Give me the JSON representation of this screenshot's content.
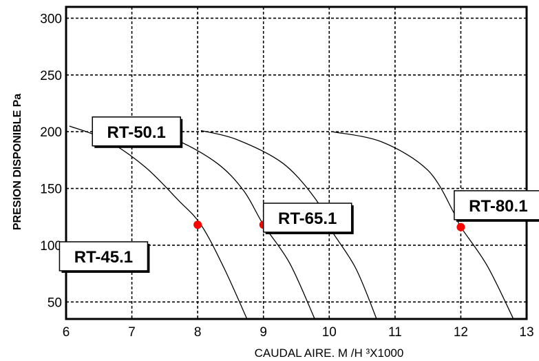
{
  "chart_data": {
    "type": "line",
    "title": "",
    "xlabel": "CAUDAL AIRE. M  /H ³X1000",
    "ylabel": "PRESION DISPONIBLE Pa",
    "xlim": [
      6,
      13
    ],
    "ylim": [
      35,
      310
    ],
    "x_ticks": [
      6,
      7,
      8,
      9,
      10,
      11,
      12,
      13
    ],
    "y_ticks": [
      50,
      100,
      150,
      200,
      250,
      300
    ],
    "grid": true,
    "series": [
      {
        "name": "RT-45.1",
        "x": [
          6.05,
          6.6,
          7.2,
          7.7,
          8.05,
          8.4,
          8.75
        ],
        "y": [
          205,
          193,
          169,
          140,
          118,
          80,
          35
        ],
        "marker": {
          "x": 8.0,
          "y": 118
        }
      },
      {
        "name": "RT-50.1",
        "x": [
          7.1,
          7.7,
          8.3,
          8.7,
          9.0,
          9.4,
          9.78
        ],
        "y": [
          202,
          192,
          172,
          148,
          118,
          84,
          35
        ],
        "marker": {
          "x": 9.0,
          "y": 118
        }
      },
      {
        "name": "RT-65.1",
        "x": [
          8.05,
          8.6,
          9.3,
          9.8,
          10.0,
          10.4,
          10.72
        ],
        "y": [
          201,
          193,
          172,
          140,
          116,
          80,
          35
        ],
        "marker": {
          "x": 10.0,
          "y": 116
        }
      },
      {
        "name": "RT-80.1",
        "x": [
          10.05,
          10.8,
          11.5,
          11.9,
          12.0,
          12.4,
          12.8
        ],
        "y": [
          200,
          191,
          166,
          128,
          116,
          82,
          35
        ],
        "marker": {
          "x": 12.0,
          "y": 116
        }
      }
    ],
    "marker_color": "#ff0000",
    "annotations": [
      {
        "text": "RT-50.1",
        "x": 6.4,
        "y": 213
      },
      {
        "text": "RT-45.1",
        "x": 5.9,
        "y": 103
      },
      {
        "text": "RT-65.1",
        "x": 9.0,
        "y": 137
      },
      {
        "text": "RT-80.1",
        "x": 11.9,
        "y": 148
      }
    ]
  }
}
